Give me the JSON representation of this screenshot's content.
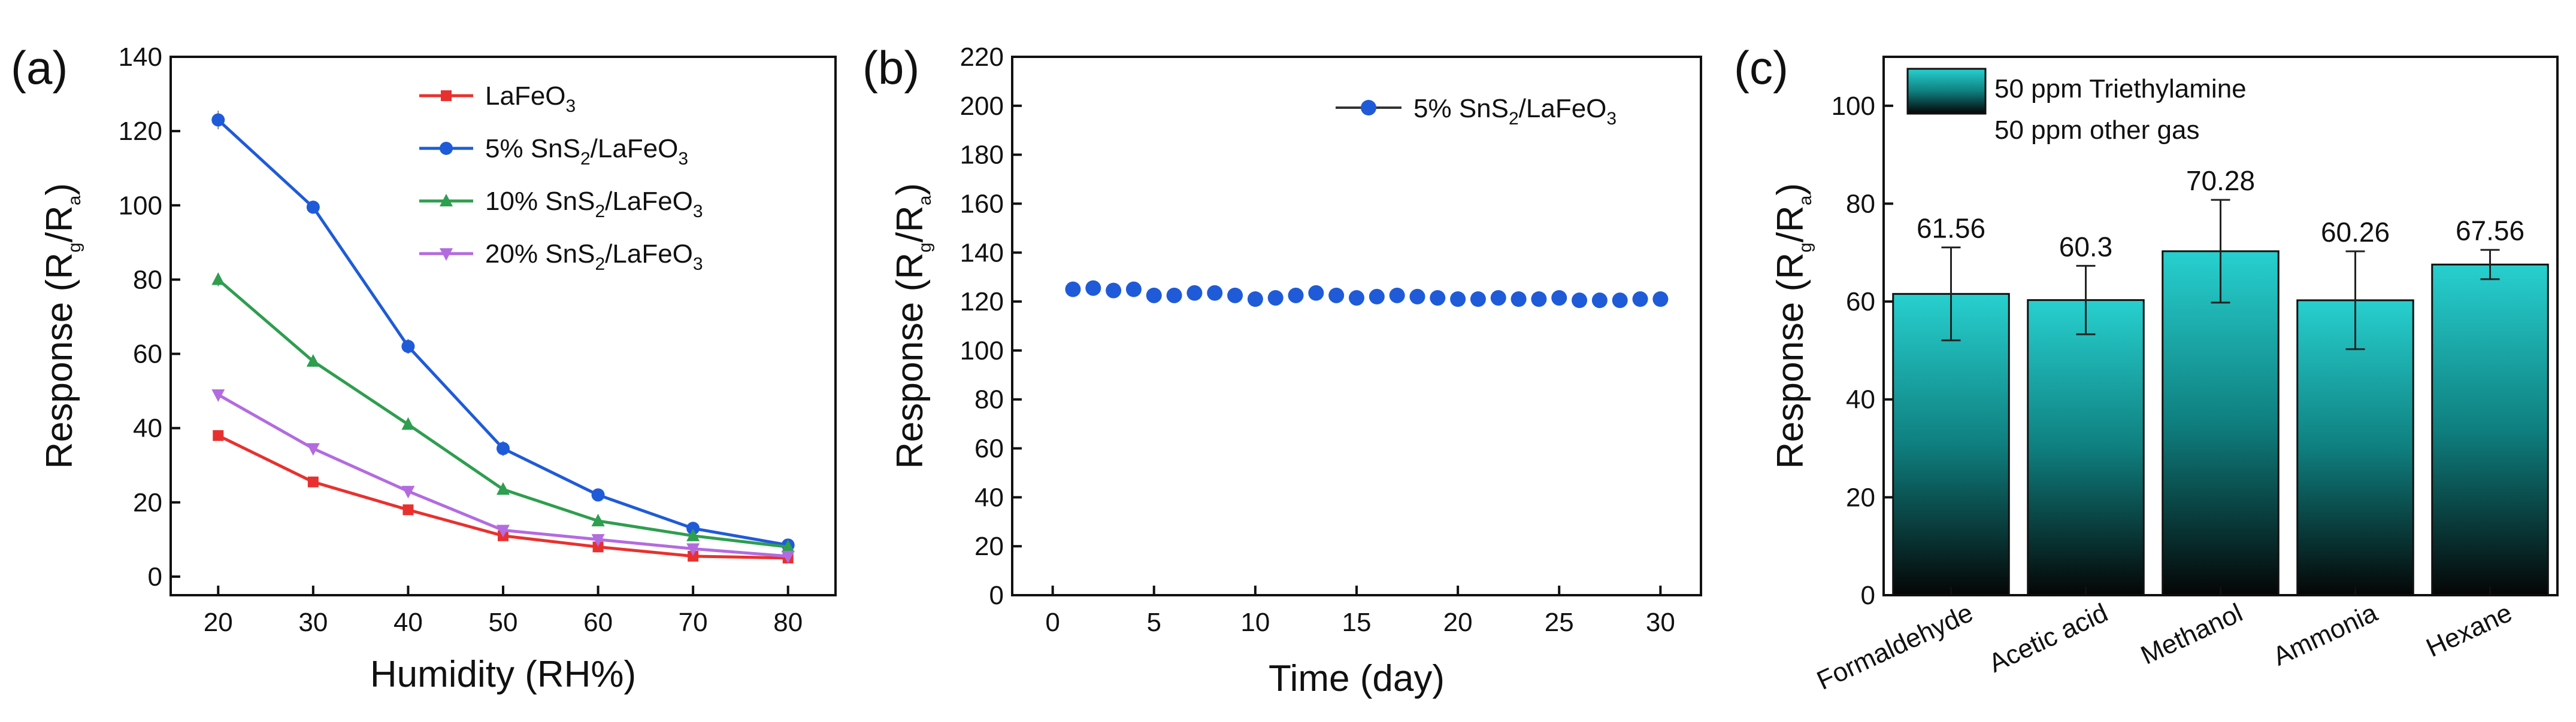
{
  "panels": {
    "a": {
      "label": "(a)",
      "xlabel": "Humidity (RH%)",
      "ylabel_main": "Response (R",
      "ylabel_sub1": "g",
      "ylabel_mid": "/R",
      "ylabel_sub2": "a",
      "ylabel_end": ")"
    },
    "b": {
      "label": "(b)",
      "xlabel": "Time (day)",
      "ylabel_main": "Response (R",
      "ylabel_sub1": "g",
      "ylabel_mid": "/R",
      "ylabel_sub2": "a",
      "ylabel_end": ")"
    },
    "c": {
      "label": "(c)",
      "ylabel_main": "Response (R",
      "ylabel_sub1": "g",
      "ylabel_mid": "/R",
      "ylabel_sub2": "a",
      "ylabel_end": ")"
    }
  },
  "chart_data": [
    {
      "id": "a",
      "type": "line",
      "xlabel": "Humidity (RH%)",
      "ylabel": "Response (Rg/Ra)",
      "xlim": [
        15,
        85
      ],
      "ylim": [
        -5,
        140
      ],
      "xticks": [
        20,
        30,
        40,
        50,
        60,
        70,
        80
      ],
      "yticks": [
        0,
        20,
        40,
        60,
        80,
        100,
        120,
        140
      ],
      "x": [
        20,
        30,
        40,
        50,
        60,
        70,
        80
      ],
      "legend_position": "top-right",
      "series": [
        {
          "name": "LaFeO3",
          "legend": {
            "pre": "LaFeO",
            "sub": "3",
            "post": ""
          },
          "color": "#e8312f",
          "marker": "square",
          "values": [
            38,
            25.5,
            18,
            11,
            8,
            5.5,
            5
          ],
          "errors": [
            1,
            0.8,
            0.7,
            0.6,
            0.5,
            0.4,
            0.4
          ]
        },
        {
          "name": "5% SnS2/LaFeO3",
          "legend": {
            "pre": "5% SnS",
            "sub": "2",
            "post": "/LaFeO",
            "sub2": "3"
          },
          "color": "#1f5bd8",
          "marker": "circle",
          "values": [
            123,
            99.5,
            62,
            34.5,
            22,
            13,
            8.5
          ],
          "errors": [
            2.5,
            1.5,
            2,
            2,
            0.8,
            0.6,
            0.5
          ]
        },
        {
          "name": "10% SnS2/LaFeO3",
          "legend": {
            "pre": "10% SnS",
            "sub": "2",
            "post": "/LaFeO",
            "sub2": "3"
          },
          "color": "#2e9e4f",
          "marker": "triangle-up",
          "values": [
            80,
            58,
            41,
            23.5,
            15,
            11,
            8
          ],
          "errors": [
            1.8,
            1.2,
            1,
            0.8,
            0.6,
            0.5,
            0.4
          ]
        },
        {
          "name": "20% SnS2/LaFeO3",
          "legend": {
            "pre": "20% SnS",
            "sub": "2",
            "post": "/LaFeO",
            "sub2": "3"
          },
          "color": "#b36be0",
          "marker": "triangle-down",
          "values": [
            49,
            34.5,
            23,
            12.5,
            10,
            7.5,
            5.5
          ],
          "errors": [
            1.2,
            0.9,
            0.8,
            0.6,
            0.5,
            0.4,
            0.4
          ]
        }
      ]
    },
    {
      "id": "b",
      "type": "line",
      "xlabel": "Time (day)",
      "ylabel": "Response (Rg/Ra)",
      "xlim": [
        -2,
        32
      ],
      "ylim": [
        0,
        220
      ],
      "xticks": [
        0,
        5,
        10,
        15,
        20,
        25,
        30
      ],
      "yticks": [
        0,
        20,
        40,
        60,
        80,
        100,
        120,
        140,
        160,
        180,
        200,
        220
      ],
      "legend_position": "top-right",
      "series": [
        {
          "name": "5% SnS2/LaFeO3",
          "legend": {
            "pre": "5% SnS",
            "sub": "2",
            "post": "/LaFeO",
            "sub2": "3"
          },
          "color": "#1f5bd8",
          "marker": "circle",
          "x": [
            1,
            2,
            3,
            4,
            5,
            6,
            7,
            8,
            9,
            10,
            11,
            12,
            13,
            14,
            15,
            16,
            17,
            18,
            19,
            20,
            21,
            22,
            23,
            24,
            25,
            26,
            27,
            28,
            29,
            30
          ],
          "values": [
            125,
            125.5,
            124.5,
            125,
            122.5,
            122.5,
            123.5,
            123.5,
            122.5,
            121,
            121.5,
            122.5,
            123.5,
            122.5,
            121.5,
            122,
            122.5,
            122,
            121.5,
            121,
            121,
            121.5,
            121,
            121,
            121.5,
            120.5,
            120.5,
            120.5,
            121,
            121
          ]
        }
      ]
    },
    {
      "id": "c",
      "type": "bar",
      "ylabel": "Response (Rg/Ra)",
      "ylim": [
        0,
        110
      ],
      "yticks": [
        0,
        20,
        40,
        60,
        80,
        100
      ],
      "categories": [
        "Formaldehyde",
        "Acetic acid",
        "Methanol",
        "Ammonia",
        "Hexane"
      ],
      "values": [
        61.56,
        60.3,
        70.28,
        60.26,
        67.56
      ],
      "value_labels": [
        "61.56",
        "60.3",
        "70.28",
        "60.26",
        "67.56"
      ],
      "errors": [
        9.5,
        7,
        10.5,
        10,
        3
      ],
      "bar_gradient": {
        "top": "#27d0cf",
        "mid": "#0f7f7f",
        "bottom": "#050505"
      },
      "legend_position": "top-left",
      "legend": [
        "50 ppm Triethylamine",
        "50 ppm other gas"
      ]
    }
  ]
}
